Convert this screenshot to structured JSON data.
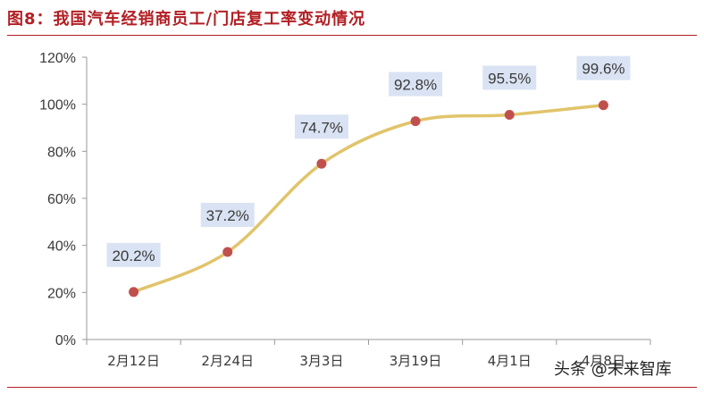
{
  "header": {
    "title": "图8：我国汽车经销商员工/门店复工率变动情况"
  },
  "watermark": {
    "text": "头条 @未来智库"
  },
  "colors": {
    "title": "#b21f24",
    "line": "#e1c46b",
    "point": "#c0504d",
    "label_bg": "#dae3f3",
    "axis": "#9a9a9a",
    "text": "#3a3a3a"
  },
  "chart_data": {
    "type": "line",
    "categories": [
      "2月12日",
      "2月24日",
      "3月3日",
      "3月19日",
      "4月1日",
      "4月8日"
    ],
    "values": [
      20.2,
      37.2,
      74.7,
      92.8,
      95.5,
      99.6
    ],
    "data_labels": [
      "20.2%",
      "37.2%",
      "74.7%",
      "92.8%",
      "95.5%",
      "99.6%"
    ],
    "yticks": [
      "0%",
      "20%",
      "40%",
      "60%",
      "80%",
      "100%",
      "120%"
    ],
    "ylim": [
      0,
      120
    ],
    "smooth": true,
    "grid": false,
    "legend": "none"
  }
}
